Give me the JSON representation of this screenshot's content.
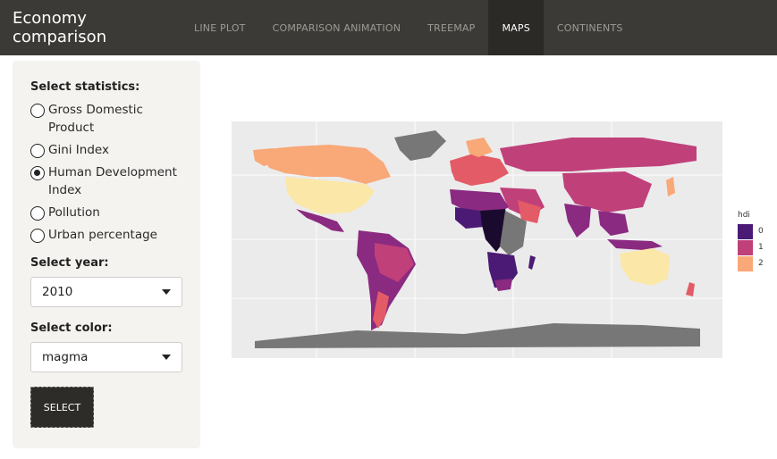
{
  "app": {
    "title": "Economy comparison"
  },
  "nav": {
    "tabs": [
      {
        "label": "LINE PLOT",
        "active": false
      },
      {
        "label": "COMPARISON ANIMATION",
        "active": false
      },
      {
        "label": "TREEMAP",
        "active": false
      },
      {
        "label": "MAPS",
        "active": true
      },
      {
        "label": "CONTINENTS",
        "active": false
      }
    ]
  },
  "sidebar": {
    "statistics_label": "Select statistics:",
    "statistics_options": [
      {
        "label": "Gross Domestic Product",
        "checked": false
      },
      {
        "label": "Gini Index",
        "checked": false
      },
      {
        "label": "Human Development Index",
        "checked": true
      },
      {
        "label": "Pollution",
        "checked": false
      },
      {
        "label": "Urban percentage",
        "checked": false
      }
    ],
    "year_label": "Select year:",
    "year_value": "2010",
    "color_label": "Select color:",
    "color_value": "magma",
    "select_button": "SELECT"
  },
  "map": {
    "legend": {
      "title": "hdi",
      "items": [
        {
          "label": "0",
          "color": "#4b1a75"
        },
        {
          "label": "1",
          "color": "#c0407a"
        },
        {
          "label": "2",
          "color": "#f9a878"
        }
      ]
    },
    "colors": {
      "na_gray": "#777777",
      "level_dark": "#1a0b2e",
      "level_0": "#4b1a75",
      "level_mid": "#8a2a80",
      "level_1": "#c0407a",
      "level_2": "#e35b66",
      "level_3": "#f9a878",
      "level_top": "#fbe7a8"
    }
  }
}
